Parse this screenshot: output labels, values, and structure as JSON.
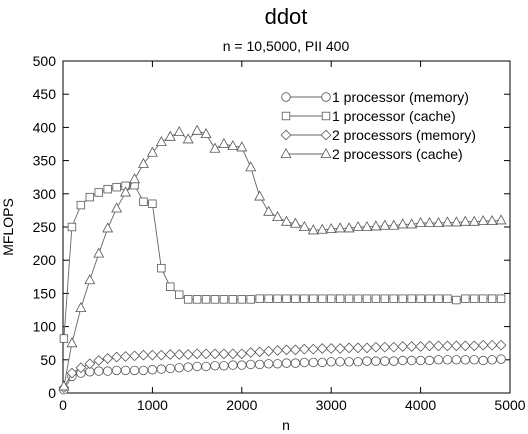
{
  "chart_data": {
    "type": "line",
    "title": "ddot",
    "subtitle": "n = 10,5000, PII 400",
    "xlabel": "n",
    "ylabel": "MFLOPS",
    "xlim": [
      0,
      5000
    ],
    "ylim": [
      0,
      500
    ],
    "xticks": [
      "0",
      "1000",
      "2000",
      "3000",
      "4000",
      "5000"
    ],
    "yticks": [
      "0",
      "50",
      "100",
      "150",
      "200",
      "250",
      "300",
      "350",
      "400",
      "450",
      "500"
    ],
    "grid": false,
    "legend_position": "top-right",
    "series": [
      {
        "name": "1 processor (memory)",
        "marker": "circle",
        "x": [
          10,
          100,
          200,
          300,
          400,
          500,
          600,
          700,
          800,
          900,
          1000,
          1100,
          1200,
          1300,
          1400,
          1500,
          1600,
          1700,
          1800,
          1900,
          2000,
          2100,
          2200,
          2300,
          2400,
          2500,
          2600,
          2700,
          2800,
          2900,
          3000,
          3100,
          3200,
          3300,
          3400,
          3500,
          3600,
          3700,
          3800,
          3900,
          4000,
          4100,
          4200,
          4300,
          4400,
          4500,
          4600,
          4700,
          4800,
          4900
        ],
        "y": [
          5,
          25,
          30,
          32,
          33,
          33,
          34,
          34,
          34,
          34,
          35,
          36,
          37,
          38,
          39,
          40,
          40,
          41,
          41,
          42,
          42,
          43,
          43,
          44,
          44,
          45,
          45,
          46,
          46,
          46,
          47,
          47,
          47,
          47,
          48,
          48,
          48,
          48,
          49,
          49,
          49,
          49,
          50,
          50,
          50,
          50,
          50,
          49,
          50,
          51
        ]
      },
      {
        "name": "1 processor (cache)",
        "marker": "square",
        "x": [
          10,
          100,
          200,
          300,
          400,
          500,
          600,
          700,
          800,
          900,
          1000,
          1100,
          1200,
          1300,
          1400,
          1500,
          1600,
          1700,
          1800,
          1900,
          2000,
          2100,
          2200,
          2300,
          2400,
          2500,
          2600,
          2700,
          2800,
          2900,
          3000,
          3100,
          3200,
          3300,
          3400,
          3500,
          3600,
          3700,
          3800,
          3900,
          4000,
          4100,
          4200,
          4300,
          4400,
          4500,
          4600,
          4700,
          4800,
          4900
        ],
        "y": [
          82,
          250,
          283,
          295,
          302,
          307,
          310,
          312,
          313,
          288,
          285,
          188,
          160,
          148,
          141,
          141,
          141,
          141,
          141,
          141,
          141,
          141,
          142,
          142,
          142,
          142,
          142,
          142,
          142,
          142,
          142,
          142,
          142,
          142,
          142,
          142,
          142,
          142,
          142,
          142,
          142,
          142,
          142,
          142,
          140,
          142,
          142,
          142,
          142,
          142
        ]
      },
      {
        "name": "2 processors (memory)",
        "marker": "diamond",
        "x": [
          10,
          100,
          200,
          300,
          400,
          500,
          600,
          700,
          800,
          900,
          1000,
          1100,
          1200,
          1300,
          1400,
          1500,
          1600,
          1700,
          1800,
          1900,
          2000,
          2100,
          2200,
          2300,
          2400,
          2500,
          2600,
          2700,
          2800,
          2900,
          3000,
          3100,
          3200,
          3300,
          3400,
          3500,
          3600,
          3700,
          3800,
          3900,
          4000,
          4100,
          4200,
          4300,
          4400,
          4500,
          4600,
          4700,
          4800,
          4900
        ],
        "y": [
          8,
          30,
          38,
          44,
          49,
          52,
          54,
          55,
          56,
          57,
          57,
          57,
          58,
          58,
          58,
          59,
          59,
          59,
          59,
          59,
          59,
          61,
          62,
          63,
          64,
          65,
          65,
          66,
          66,
          67,
          67,
          67,
          68,
          68,
          68,
          69,
          69,
          69,
          70,
          70,
          70,
          71,
          71,
          71,
          71,
          71,
          71,
          72,
          72,
          72
        ]
      },
      {
        "name": "2 processors (cache)",
        "marker": "triangle",
        "x": [
          10,
          100,
          200,
          300,
          400,
          500,
          600,
          700,
          800,
          900,
          1000,
          1100,
          1200,
          1300,
          1400,
          1500,
          1600,
          1700,
          1800,
          1900,
          2000,
          2100,
          2200,
          2300,
          2400,
          2500,
          2600,
          2700,
          2800,
          2900,
          3000,
          3100,
          3200,
          3300,
          3400,
          3500,
          3600,
          3700,
          3800,
          3900,
          4000,
          4100,
          4200,
          4300,
          4400,
          4500,
          4600,
          4700,
          4800,
          4900
        ],
        "y": [
          10,
          75,
          128,
          170,
          210,
          248,
          278,
          302,
          322,
          345,
          362,
          378,
          386,
          393,
          382,
          395,
          390,
          368,
          375,
          372,
          370,
          340,
          296,
          273,
          265,
          258,
          255,
          250,
          245,
          246,
          247,
          248,
          248,
          250,
          250,
          251,
          252,
          252,
          254,
          254,
          256,
          256,
          256,
          257,
          257,
          258,
          258,
          259,
          259,
          260
        ]
      }
    ]
  }
}
